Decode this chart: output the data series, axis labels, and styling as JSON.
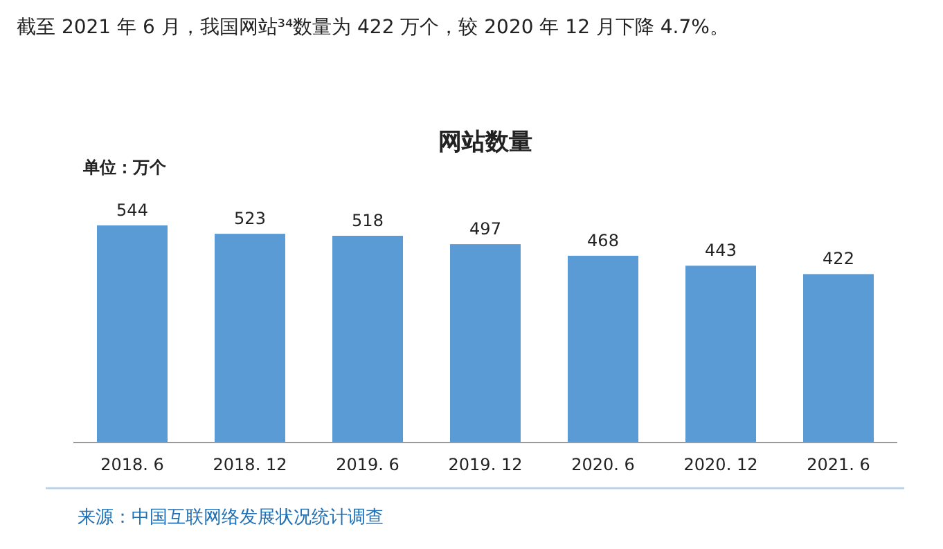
{
  "chart_data": {
    "type": "bar",
    "subtitle": "截至 2021 年 6 月，我国网站³⁴数量为 422 万个，较 2020 年 12 月下降 4.7%。",
    "title": "网站数量",
    "ylabel": "单位：万个",
    "categories": [
      "2018. 6",
      "2018. 12",
      "2019. 6",
      "2019. 12",
      "2020. 6",
      "2020. 12",
      "2021. 6"
    ],
    "values": [
      544,
      523,
      518,
      497,
      468,
      443,
      422
    ],
    "color": "#5b9bd5",
    "data_labels": true,
    "annotations": [
      "来源：中国互联网络发展状况统计调查"
    ]
  }
}
